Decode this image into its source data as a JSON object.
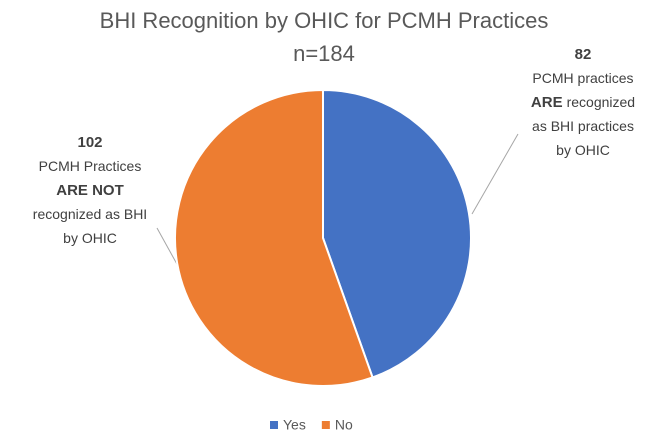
{
  "chart_data": {
    "type": "pie",
    "title": "BHI Recognition by OHIC for PCMH Practices",
    "subtitle": "n=184",
    "categories": [
      "Yes",
      "No"
    ],
    "values": [
      82,
      102
    ],
    "colors": [
      "#4472c4",
      "#ed7d31"
    ],
    "legend": "bottom",
    "annotations": [
      [
        [
          {
            "text": "PCMH practices",
            "bold": false
          }
        ],
        [
          {
            "text": "ARE",
            "bold": true
          },
          {
            "text": "recognized",
            "bold": false
          }
        ],
        [
          {
            "text": "as BHI practices",
            "bold": false
          }
        ],
        [
          {
            "text": "by OHIC",
            "bold": false
          }
        ]
      ],
      [
        [
          {
            "text": "PCMH Practices",
            "bold": false
          }
        ],
        [
          {
            "text": "ARE NOT",
            "bold": true
          }
        ],
        [
          {
            "text": "recognized as BHI",
            "bold": false
          }
        ],
        [
          {
            "text": "by OHIC",
            "bold": false
          }
        ]
      ]
    ]
  }
}
